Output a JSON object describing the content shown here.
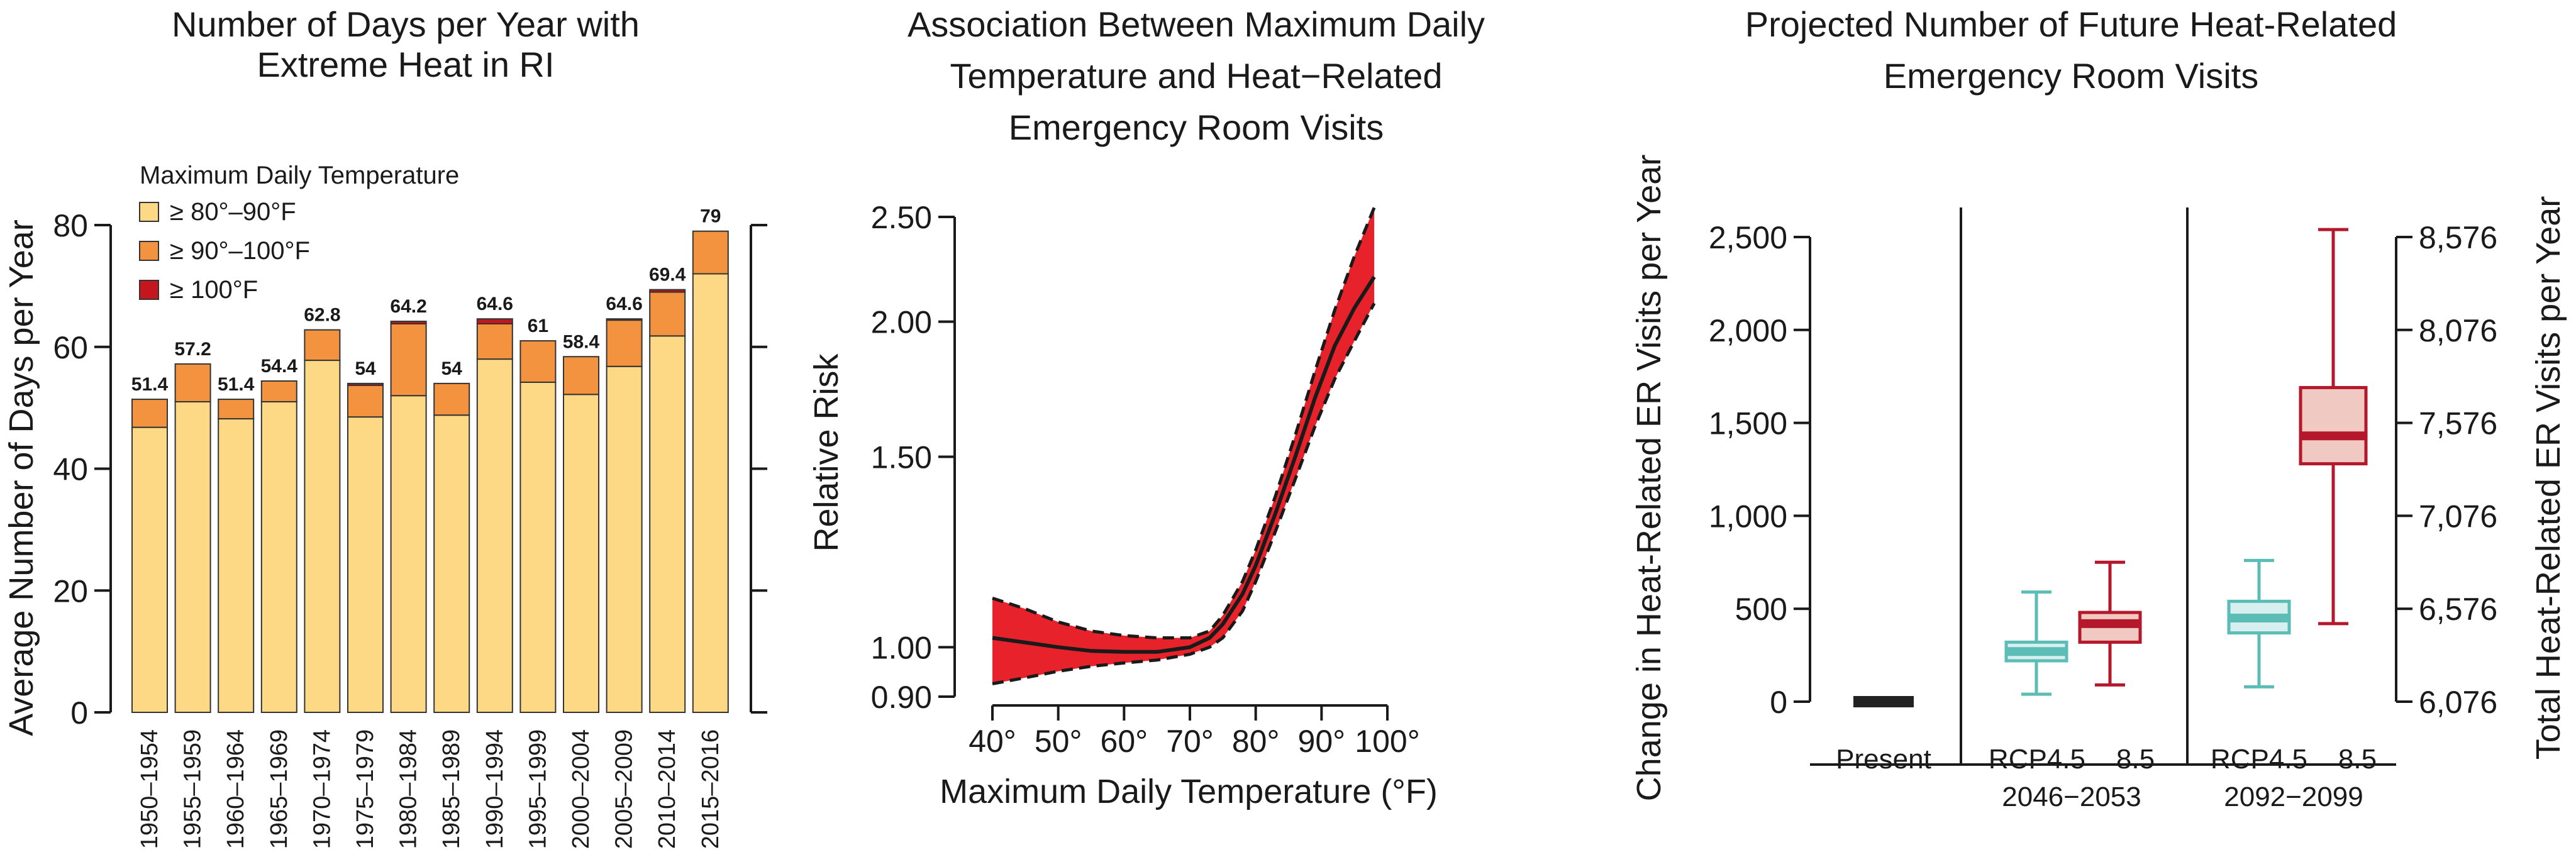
{
  "colors": {
    "c80_90": "#FDD985",
    "c90_100": "#F3923F",
    "c100": "#C4161C",
    "rr_band": "#E8222A",
    "rcp45": "#5BBDB6",
    "rcp45_fill": "#D7EFEE",
    "rcp85": "#B5182B",
    "rcp85_fill": "#F0C9C3",
    "present": "#222222"
  },
  "chart_data": [
    {
      "type": "bar",
      "title_lines": [
        "Number of Days per Year with",
        "Extreme Heat in RI"
      ],
      "ylabel": "Average Number of Days per Year",
      "xlabel": "",
      "ylim": [
        0,
        80
      ],
      "yticks": [
        0,
        20,
        40,
        60,
        80
      ],
      "legend_title": "Maximum Daily Temperature",
      "legend_placement": "top-left",
      "categories": [
        "1950–1954",
        "1955–1959",
        "1960–1964",
        "1965–1969",
        "1970–1974",
        "1975–1979",
        "1980–1984",
        "1985–1989",
        "1990–1994",
        "1995–1999",
        "2000–2004",
        "2005–2009",
        "2010–2014",
        "2015–2016"
      ],
      "series": [
        {
          "name": "≥ 80°–90°F",
          "values": [
            46.8,
            51,
            48.2,
            51,
            57.8,
            48.5,
            52,
            48.8,
            58,
            54.2,
            52.2,
            56.8,
            61.8,
            72
          ]
        },
        {
          "name": "≥ 90°–100°F",
          "values": [
            4.6,
            6.2,
            3.2,
            3.4,
            5,
            5.2,
            11.8,
            5.2,
            5.8,
            6.8,
            6.2,
            7.6,
            7.2,
            7
          ]
        },
        {
          "name": "≥ 100°F",
          "values": [
            0,
            0,
            0,
            0,
            0,
            0.3,
            0.4,
            0,
            0.8,
            0,
            0,
            0.2,
            0.4,
            0
          ]
        }
      ],
      "totals_labels": [
        "51.4",
        "57.2",
        "51.4",
        "54.4",
        "62.8",
        "54",
        "64.2",
        "54",
        "64.6",
        "61",
        "58.4",
        "64.6",
        "69.4",
        "79"
      ]
    },
    {
      "type": "line",
      "title_lines": [
        "Association Between Maximum Daily",
        "Temperature and Heat−Related",
        "Emergency Room Visits"
      ],
      "ylabel": "Relative Risk",
      "xlabel": "Maximum Daily Temperature (°F)",
      "scale": "log",
      "xlim": [
        40,
        100
      ],
      "ylim": [
        0.9,
        2.5
      ],
      "xticks": [
        "40°",
        "50°",
        "60°",
        "70°",
        "80°",
        "90°",
        "100°"
      ],
      "xtick_values": [
        40,
        50,
        60,
        70,
        80,
        90,
        100
      ],
      "yticks": [
        "0.90",
        "1.00",
        "1.50",
        "2.00",
        "2.50"
      ],
      "ytick_values": [
        0.9,
        1.0,
        1.5,
        2.0,
        2.5
      ],
      "series": [
        {
          "x": [
            40,
            45,
            50,
            55,
            60,
            65,
            70,
            73,
            75,
            78,
            80,
            83,
            86,
            89,
            92,
            95,
            98
          ],
          "y": [
            1.02,
            1.01,
            1.0,
            0.992,
            0.99,
            0.99,
            1.0,
            1.02,
            1.05,
            1.12,
            1.19,
            1.33,
            1.5,
            1.7,
            1.9,
            2.06,
            2.2
          ],
          "lower": [
            0.925,
            0.937,
            0.95,
            0.96,
            0.967,
            0.973,
            0.985,
            1.0,
            1.02,
            1.08,
            1.15,
            1.28,
            1.43,
            1.6,
            1.77,
            1.92,
            2.08
          ],
          "upper": [
            1.11,
            1.085,
            1.055,
            1.035,
            1.025,
            1.02,
            1.02,
            1.035,
            1.07,
            1.15,
            1.23,
            1.38,
            1.57,
            1.8,
            2.05,
            2.3,
            2.55
          ]
        }
      ]
    },
    {
      "type": "box",
      "title_lines": [
        "Projected Number of Future Heat-Related",
        "Emergency Room Visits"
      ],
      "ylabel": "Change in Heat-Related ER Visits per Year",
      "ylabel_right": "Total Heat-Related ER Visits per Year",
      "ylim": [
        0,
        2500
      ],
      "yticks": [
        0,
        500,
        1000,
        1500,
        2000,
        2500
      ],
      "ytick_labels": [
        "0",
        "500",
        "1,000",
        "1,500",
        "2,000",
        "2,500"
      ],
      "ytick_labels_right": [
        "6,076",
        "6,576",
        "7,076",
        "7,576",
        "8,076",
        "8,576"
      ],
      "group_labels": [
        {
          "line1": "Present",
          "line2": ""
        },
        {
          "line1": "RCP4.5    8.5",
          "line2": "2046−2053"
        },
        {
          "line1": "RCP4.5    8.5",
          "line2": "2092−2099"
        }
      ],
      "boxes": [
        {
          "name": "Present",
          "min": 0,
          "q1": 0,
          "median": 0,
          "q3": 0,
          "max": 0
        },
        {
          "name": "RCP4.5 2046−2053",
          "min": 40,
          "q1": 220,
          "median": 270,
          "q3": 320,
          "max": 590
        },
        {
          "name": "8.5 2046−2053",
          "min": 90,
          "q1": 320,
          "median": 420,
          "q3": 480,
          "max": 750
        },
        {
          "name": "RCP4.5 2092−2099",
          "min": 80,
          "q1": 370,
          "median": 450,
          "q3": 540,
          "max": 760
        },
        {
          "name": "8.5 2092−2099",
          "min": 420,
          "q1": 1280,
          "median": 1430,
          "q3": 1690,
          "max": 2540
        }
      ]
    }
  ]
}
